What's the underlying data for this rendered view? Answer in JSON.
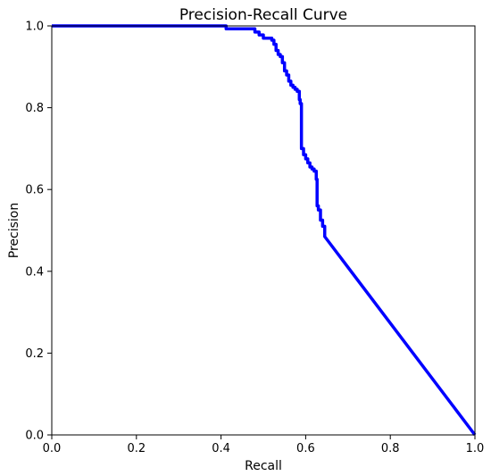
{
  "chart_data": {
    "type": "line",
    "title": "Precision-Recall Curve",
    "xlabel": "Recall",
    "ylabel": "Precision",
    "xlim": [
      0.0,
      1.0
    ],
    "ylim": [
      0.0,
      1.0
    ],
    "xticks": [
      "0.0",
      "0.2",
      "0.4",
      "0.6",
      "0.8",
      "1.0"
    ],
    "yticks": [
      "0.0",
      "0.2",
      "0.4",
      "0.6",
      "0.8",
      "1.0"
    ],
    "grid": false,
    "series": [
      {
        "color": "#0000ff",
        "x": [
          0.0,
          0.41,
          0.412,
          0.47,
          0.48,
          0.49,
          0.5,
          0.51,
          0.52,
          0.525,
          0.53,
          0.535,
          0.54,
          0.545,
          0.55,
          0.555,
          0.56,
          0.565,
          0.57,
          0.575,
          0.58,
          0.585,
          0.587,
          0.59,
          0.595,
          0.6,
          0.605,
          0.61,
          0.615,
          0.62,
          0.625,
          0.627,
          0.63,
          0.635,
          0.64,
          0.645,
          1.0
        ],
        "y": [
          1.0,
          1.0,
          0.993,
          0.993,
          0.985,
          0.978,
          0.97,
          0.97,
          0.965,
          0.955,
          0.94,
          0.93,
          0.925,
          0.91,
          0.89,
          0.88,
          0.865,
          0.855,
          0.85,
          0.845,
          0.84,
          0.82,
          0.81,
          0.7,
          0.685,
          0.675,
          0.665,
          0.655,
          0.65,
          0.645,
          0.625,
          0.56,
          0.55,
          0.525,
          0.51,
          0.485,
          0.0
        ]
      }
    ]
  }
}
